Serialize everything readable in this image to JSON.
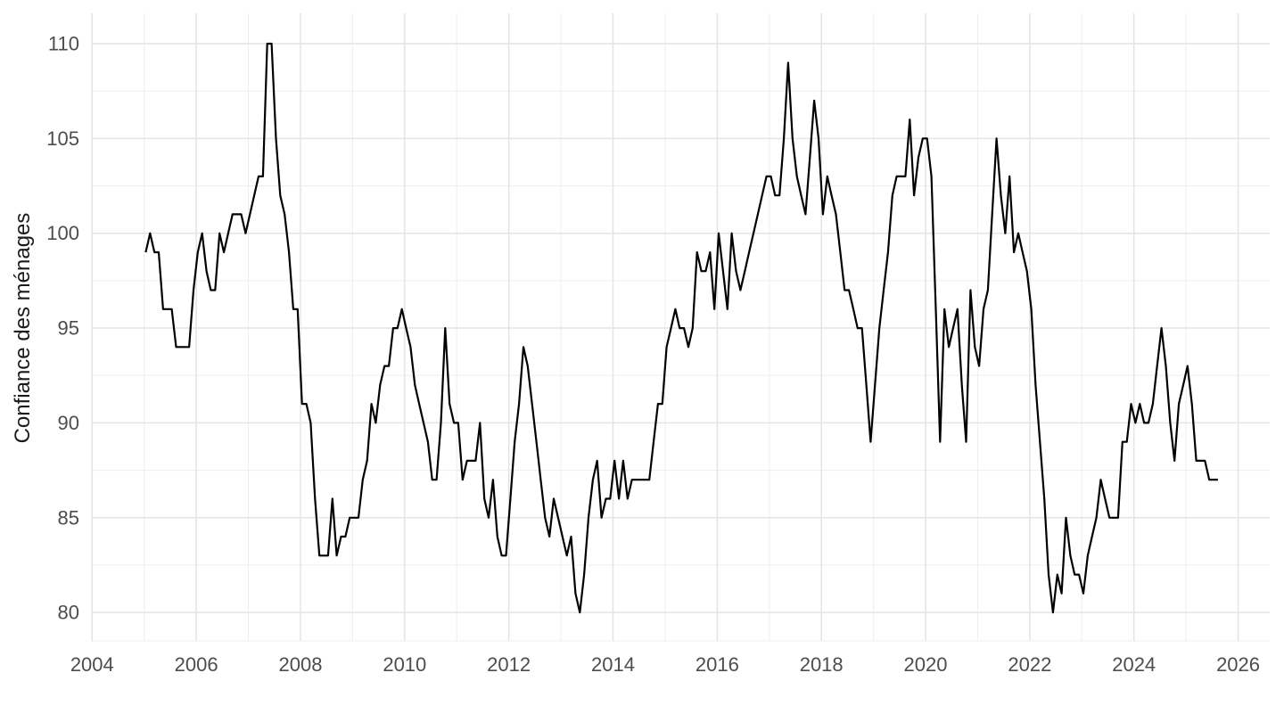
{
  "chart_data": {
    "type": "line",
    "title": "",
    "xlabel": "",
    "ylabel": "Confiance des ménages",
    "series_name": "Confiance des ménages (indice mensuel)",
    "frequency": "monthly",
    "start_year": 2005,
    "start_month": 1,
    "end_year": 2025,
    "end_month": 8,
    "x_ticks": [
      2004,
      2006,
      2008,
      2010,
      2012,
      2014,
      2016,
      2018,
      2020,
      2022,
      2024,
      2026
    ],
    "x_minor_ticks": [
      2005,
      2007,
      2009,
      2011,
      2013,
      2015,
      2017,
      2019,
      2021,
      2023,
      2025
    ],
    "y_ticks": [
      80,
      85,
      90,
      95,
      100,
      105,
      110
    ],
    "y_minor_ticks": [
      82.5,
      87.5,
      92.5,
      97.5,
      102.5,
      107.5
    ],
    "ylim": [
      78.5,
      111.5
    ],
    "xlim_years": [
      2003.95,
      2026.6
    ],
    "grid": true,
    "legend_position": "none",
    "line_color": "#000000",
    "grid_major_color": "#E4E4E4",
    "grid_minor_color": "#EFEFEF",
    "tick_label_color": "#4D4D4D",
    "axis_title_color": "#1A1A1A",
    "background_color": "#FFFFFF",
    "values_by_year": {
      "2005": [
        99,
        100,
        99,
        99,
        96,
        96,
        96,
        94,
        94,
        94,
        94,
        97
      ],
      "2006": [
        99,
        100,
        98,
        97,
        97,
        100,
        99,
        100,
        101,
        101,
        101,
        100
      ],
      "2007": [
        101,
        102,
        103,
        103,
        110,
        110,
        105,
        102,
        101,
        99,
        96,
        96
      ],
      "2008": [
        91,
        91,
        90,
        86,
        83,
        83,
        83,
        86,
        83,
        84,
        84,
        85
      ],
      "2009": [
        85,
        85,
        87,
        88,
        91,
        90,
        92,
        93,
        93,
        95,
        95,
        96
      ],
      "2010": [
        95,
        94,
        92,
        91,
        90,
        89,
        87,
        87,
        90,
        95,
        91,
        90
      ],
      "2011": [
        90,
        87,
        88,
        88,
        88,
        90,
        86,
        85,
        87,
        84,
        83,
        83
      ],
      "2012": [
        86,
        89,
        91,
        94,
        93,
        91,
        89,
        87,
        85,
        84,
        86,
        85
      ],
      "2013": [
        84,
        83,
        84,
        81,
        80,
        82,
        85,
        87,
        88,
        85,
        86,
        86
      ],
      "2014": [
        88,
        86,
        88,
        86,
        87,
        87,
        87,
        87,
        87,
        89,
        91,
        91
      ],
      "2015": [
        94,
        95,
        96,
        95,
        95,
        94,
        95,
        99,
        98,
        98,
        99,
        96
      ],
      "2016": [
        100,
        98,
        96,
        100,
        98,
        97,
        98,
        99,
        100,
        101,
        102,
        103
      ],
      "2017": [
        103,
        102,
        102,
        105,
        109,
        105,
        103,
        102,
        101,
        104,
        107,
        105
      ],
      "2018": [
        101,
        103,
        102,
        101,
        99,
        97,
        97,
        96,
        95,
        95,
        92,
        89
      ],
      "2019": [
        92,
        95,
        97,
        99,
        102,
        103,
        103,
        103,
        106,
        102,
        104,
        105
      ],
      "2020": [
        105,
        103,
        96,
        89,
        96,
        94,
        95,
        96,
        92,
        89,
        97,
        94
      ],
      "2021": [
        93,
        96,
        97,
        101,
        105,
        102,
        100,
        103,
        99,
        100,
        99,
        98
      ],
      "2022": [
        96,
        92,
        89,
        86,
        82,
        80,
        82,
        81,
        85,
        83,
        82,
        82
      ],
      "2023": [
        81,
        83,
        84,
        85,
        87,
        86,
        85,
        85,
        85,
        89,
        89,
        91
      ],
      "2024": [
        90,
        91,
        90,
        90,
        91,
        93,
        95,
        93,
        90,
        88,
        91,
        92
      ],
      "2025": [
        93,
        91,
        88,
        88,
        88,
        87,
        87,
        87
      ]
    }
  }
}
